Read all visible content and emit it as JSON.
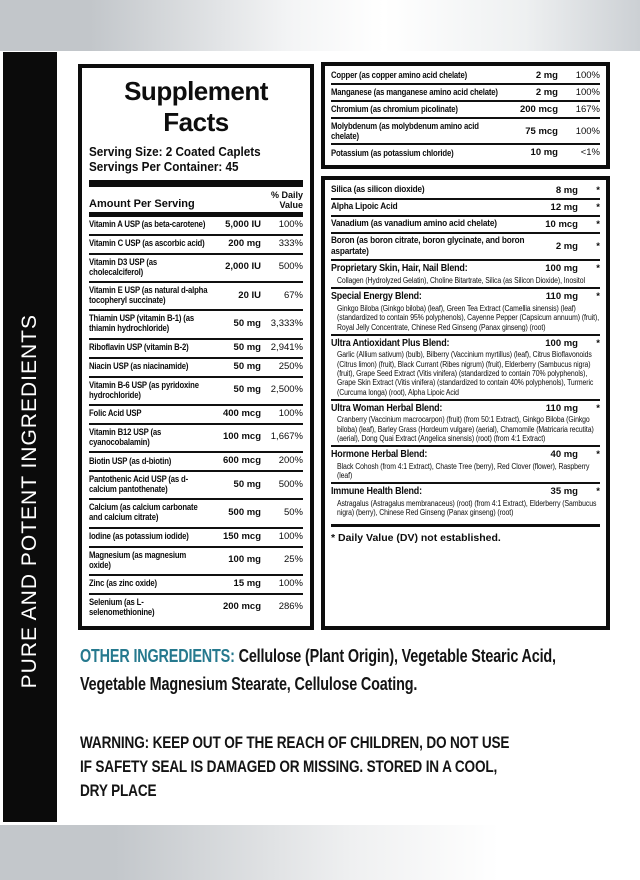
{
  "sidebar": {
    "label": "PURE AND POTENT INGREDIENTS"
  },
  "panel": {
    "title": "Supplement Facts",
    "serving_size": "Serving Size: 2 Coated Caplets",
    "servings_per_container": "Servings Per Container: 45",
    "amount_header": "Amount Per Serving",
    "dv_header": "% Daily Value",
    "left_rows": [
      {
        "name": "Vitamin A USP (as beta-carotene)",
        "amount": "5,000 IU",
        "dv": "100%"
      },
      {
        "name": "Vitamin C USP (as ascorbic acid)",
        "amount": "200 mg",
        "dv": "333%"
      },
      {
        "name": "Vitamin D3 USP (as cholecalciferol)",
        "amount": "2,000 IU",
        "dv": "500%"
      },
      {
        "name": "Vitamin E USP (as natural d-alpha tocopheryl succinate)",
        "amount": "20 IU",
        "dv": "67%"
      },
      {
        "name": "Thiamin USP (vitamin B-1) (as thiamin hydrochloride)",
        "amount": "50 mg",
        "dv": "3,333%"
      },
      {
        "name": "Riboflavin USP (vitamin B-2)",
        "amount": "50 mg",
        "dv": "2,941%"
      },
      {
        "name": "Niacin USP (as niacinamide)",
        "amount": "50 mg",
        "dv": "250%"
      },
      {
        "name": "Vitamin B-6 USP (as pyridoxine hydrochloride)",
        "amount": "50 mg",
        "dv": "2,500%"
      },
      {
        "name": "Folic Acid USP",
        "amount": "400 mcg",
        "dv": "100%"
      },
      {
        "name": "Vitamin B12 USP (as cyanocobalamin)",
        "amount": "100 mcg",
        "dv": "1,667%"
      },
      {
        "name": "Biotin USP (as d-biotin)",
        "amount": "600 mcg",
        "dv": "200%"
      },
      {
        "name": "Pantothenic Acid USP (as d-calcium pantothenate)",
        "amount": "50 mg",
        "dv": "500%"
      },
      {
        "name": "Calcium (as calcium carbonate and calcium citrate)",
        "amount": "500 mg",
        "dv": "50%"
      },
      {
        "name": "Iodine (as potassium iodide)",
        "amount": "150 mcg",
        "dv": "100%"
      },
      {
        "name": "Magnesium (as magnesium oxide)",
        "amount": "100 mg",
        "dv": "25%"
      },
      {
        "name": "Zinc (as zinc oxide)",
        "amount": "15 mg",
        "dv": "100%"
      },
      {
        "name": "Selenium (as L-selenomethionine)",
        "amount": "200 mcg",
        "dv": "286%"
      }
    ],
    "right_box1_rows": [
      {
        "name": "Copper (as copper amino acid chelate)",
        "amount": "2 mg",
        "dv": "100%"
      },
      {
        "name": "Manganese (as manganese amino acid chelate)",
        "amount": "2 mg",
        "dv": "100%"
      },
      {
        "name": "Chromium (as chromium picolinate)",
        "amount": "200 mcg",
        "dv": "167%"
      },
      {
        "name": "Molybdenum (as molybdenum amino acid chelate)",
        "amount": "75 mcg",
        "dv": "100%"
      },
      {
        "name": "Potassium (as potassium chloride)",
        "amount": "10 mg",
        "dv": "<1%"
      }
    ],
    "right_box2_rows": [
      {
        "name": "Silica (as silicon dioxide)",
        "amount": "8 mg",
        "dv": "*"
      },
      {
        "name": "Alpha Lipoic Acid",
        "amount": "12 mg",
        "dv": "*"
      },
      {
        "name": "Vanadium (as vanadium amino acid chelate)",
        "amount": "10 mcg",
        "dv": "*"
      },
      {
        "name": "Boron (as boron citrate, boron glycinate, and boron aspartate)",
        "amount": "2 mg",
        "dv": "*"
      },
      {
        "name": "Proprietary Skin, Hair, Nail Blend:",
        "amount": "100 mg",
        "dv": "*",
        "sub": "Collagen (Hydrolyzed Gelatin), Choline Bitartrate, Silica (as Silicon Dioxide), Inositol"
      },
      {
        "name": "Special Energy Blend:",
        "amount": "110 mg",
        "dv": "*",
        "sub": "Ginkgo Biloba (Ginkgo biloba) (leaf), Green Tea Extract (Camellia sinensis) (leaf) (standardized to contain 95% polyphenols), Cayenne Pepper (Capsicum annuum) (fruit), Royal Jelly Concentrate, Chinese Red Ginseng (Panax ginseng) (root)"
      },
      {
        "name": "Ultra Antioxidant Plus Blend:",
        "amount": "100 mg",
        "dv": "*",
        "sub": "Garlic (Allium sativum) (bulb), Bilberry (Vaccinium myrtillus) (leaf), Citrus Bioflavonoids (Citrus limon) (fruit), Black Currant (Ribes nigrum) (fruit), Elderberry (Sambucus nigra) (fruit), Grape Seed Extract (Vitis vinifera) (standardized to contain 70% polyphenols), Grape Skin Extract (Vitis vinifera) (standardized to contain 40% polyphenols), Turmeric (Curcuma longa) (root), Alpha Lipoic Acid"
      },
      {
        "name": "Ultra Woman Herbal Blend:",
        "amount": "110 mg",
        "dv": "*",
        "sub": "Cranberry (Vaccinium macrocarpon) (fruit) (from 50:1 Extract), Ginkgo Biloba (Ginkgo biloba) (leaf), Barley Grass (Hordeum vulgare) (aerial), Chamomile (Matricaria recutita) (aerial), Dong Quai Extract (Angelica sinensis) (root) (from 4:1 Extract)"
      },
      {
        "name": "Hormone Herbal Blend:",
        "amount": "40 mg",
        "dv": "*",
        "sub": "Black Cohosh (from 4:1 Extract), Chaste Tree (berry), Red Clover (flower), Raspberry (leaf)"
      },
      {
        "name": "Immune Health Blend:",
        "amount": "35 mg",
        "dv": "*",
        "sub": "Astragalus (Astragalus membranaceus) (root) (from 4:1 Extract), Elderberry (Sambucus nigra) (berry), Chinese Red Ginseng (Panax ginseng) (root)"
      }
    ],
    "footnote": "* Daily Value (DV) not established."
  },
  "other_ingredients": {
    "label": "OTHER INGREDIENTS:",
    "text": " Cellulose (Plant Origin), Vegetable Stearic Acid, Vegetable Magnesium Stearate, Cellulose Coating."
  },
  "warning": "WARNING: KEEP OUT OF THE REACH OF CHILDREN, DO NOT USE IF SAFETY SEAL IS DAMAGED OR MISSING. STORED IN A COOL, DRY PLACE",
  "colors": {
    "accent_teal": "#26798e",
    "banner_black": "#0b0b0b",
    "band_gray": "#c3c7cb"
  }
}
